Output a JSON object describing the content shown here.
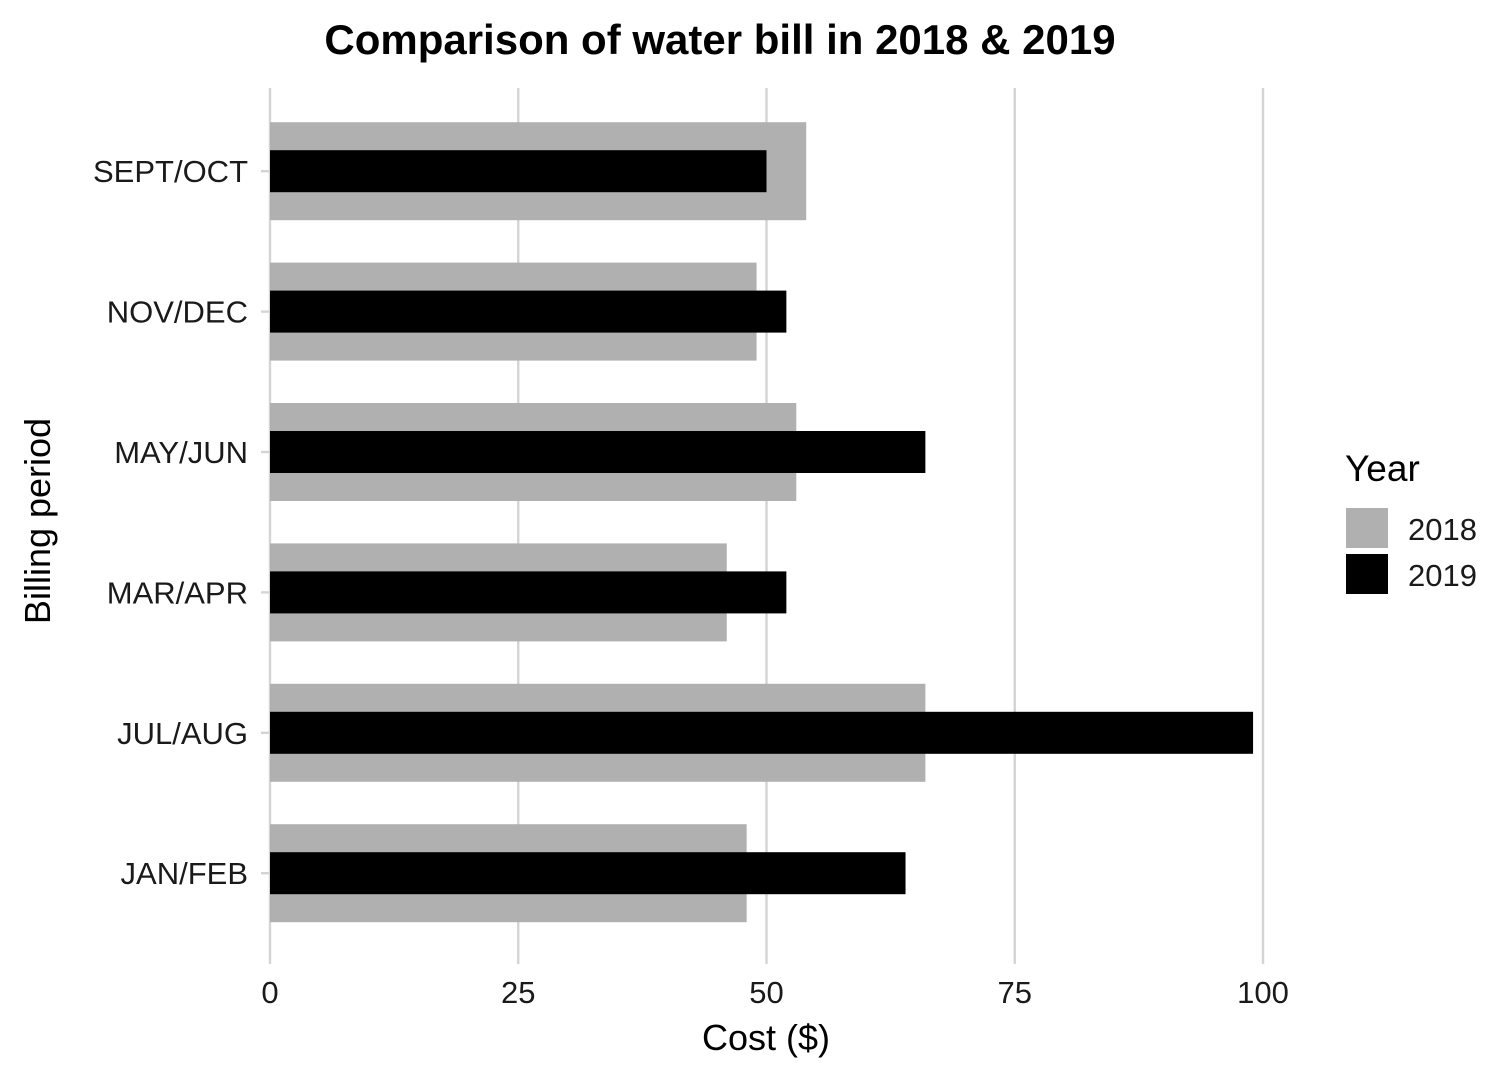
{
  "chart_data": {
    "type": "bar",
    "orientation": "horizontal",
    "title": "Comparison of water bill in 2018 & 2019",
    "xlabel": "Cost ($)",
    "ylabel": "Billing period",
    "xlim": [
      0,
      100
    ],
    "xticks": [
      0,
      25,
      50,
      75,
      100
    ],
    "grid": "vertical major",
    "categories": [
      "JAN/FEB",
      "JUL/AUG",
      "MAR/APR",
      "MAY/JUN",
      "NOV/DEC",
      "SEPT/OCT"
    ],
    "series": [
      {
        "name": "2018",
        "color": "#b0b0b0",
        "values": [
          48,
          66,
          46,
          53,
          49,
          54
        ]
      },
      {
        "name": "2019",
        "color": "#000000",
        "values": [
          64,
          99,
          52,
          66,
          52,
          50
        ]
      }
    ],
    "legend": {
      "title": "Year",
      "position": "right"
    }
  }
}
